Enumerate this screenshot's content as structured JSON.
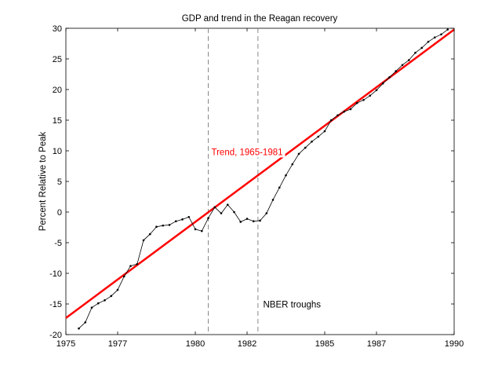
{
  "chart_data": {
    "type": "line",
    "title": "GDP and trend in the Reagan recovery",
    "xlabel": "",
    "ylabel": "Percent Relative to Peak",
    "xlim": [
      1975,
      1990
    ],
    "ylim": [
      -20,
      30
    ],
    "x_ticks": [
      {
        "value": 1975,
        "label": "1975"
      },
      {
        "value": 1977,
        "label": "1977"
      },
      {
        "value": 1980,
        "label": "1980"
      },
      {
        "value": 1982,
        "label": "1982"
      },
      {
        "value": 1985,
        "label": "1985"
      },
      {
        "value": 1987,
        "label": "1987"
      },
      {
        "value": 1990,
        "label": "1990"
      }
    ],
    "y_ticks": [
      {
        "value": 30,
        "label": "30"
      },
      {
        "value": 25,
        "label": "25"
      },
      {
        "value": 20,
        "label": "20"
      },
      {
        "value": 15,
        "label": "15"
      },
      {
        "value": 10,
        "label": "10"
      },
      {
        "value": 5,
        "label": "5"
      },
      {
        "value": 0,
        "label": "0"
      },
      {
        "value": -5,
        "label": "-5"
      },
      {
        "value": -10,
        "label": "-10"
      },
      {
        "value": -15,
        "label": "-15"
      },
      {
        "value": -20,
        "label": "-20"
      }
    ],
    "series": [
      {
        "name": "Trend, 1965-1981",
        "color": "#ff0000",
        "style": "solid-thick",
        "x": [
          1975.0,
          1990.0
        ],
        "y": [
          -17.3,
          29.8
        ]
      },
      {
        "name": "GDP",
        "color": "#000000",
        "style": "line-dots",
        "x": [
          1975.5,
          1975.75,
          1976.0,
          1976.25,
          1976.5,
          1976.75,
          1977.0,
          1977.25,
          1977.5,
          1977.75,
          1978.0,
          1978.25,
          1978.5,
          1978.75,
          1979.0,
          1979.25,
          1979.5,
          1979.75,
          1980.0,
          1980.25,
          1980.5,
          1980.75,
          1981.0,
          1981.25,
          1981.5,
          1981.75,
          1982.0,
          1982.25,
          1982.5,
          1982.75,
          1983.0,
          1983.25,
          1983.5,
          1983.75,
          1984.0,
          1984.25,
          1984.5,
          1984.75,
          1985.0,
          1985.25,
          1985.5,
          1985.75,
          1986.0,
          1986.25,
          1986.5,
          1986.75,
          1987.0,
          1987.25,
          1987.5,
          1987.75,
          1988.0,
          1988.25,
          1988.5,
          1988.75,
          1989.0,
          1989.25,
          1989.5,
          1989.75
        ],
        "y": [
          -19.0,
          -18.0,
          -15.6,
          -14.9,
          -14.4,
          -13.7,
          -12.7,
          -10.5,
          -8.8,
          -8.5,
          -4.6,
          -3.6,
          -2.4,
          -2.2,
          -2.1,
          -1.5,
          -1.2,
          -0.8,
          -2.8,
          -3.1,
          -1.0,
          0.8,
          -0.2,
          1.2,
          0.0,
          -1.6,
          -1.1,
          -1.5,
          -1.4,
          -0.2,
          2.0,
          4.0,
          6.0,
          7.8,
          9.5,
          10.5,
          11.5,
          12.3,
          13.2,
          15.0,
          15.8,
          16.4,
          16.8,
          17.8,
          18.3,
          19.0,
          19.9,
          21.0,
          22.0,
          23.0,
          24.0,
          24.8,
          26.0,
          26.8,
          27.8,
          28.5,
          29.0,
          29.8
        ]
      }
    ],
    "vlines": [
      {
        "x": 1980.5,
        "style": "dashed",
        "color": "#888888"
      },
      {
        "x": 1982.42,
        "style": "dashed",
        "color": "#888888"
      }
    ],
    "annotations": [
      {
        "text": "Trend, 1965-1981",
        "x": 1980.5,
        "y": 9.3,
        "color": "#ff0000"
      },
      {
        "text": "NBER troughs",
        "x": 1982.5,
        "y": -15.6,
        "color": "#000000"
      }
    ]
  }
}
